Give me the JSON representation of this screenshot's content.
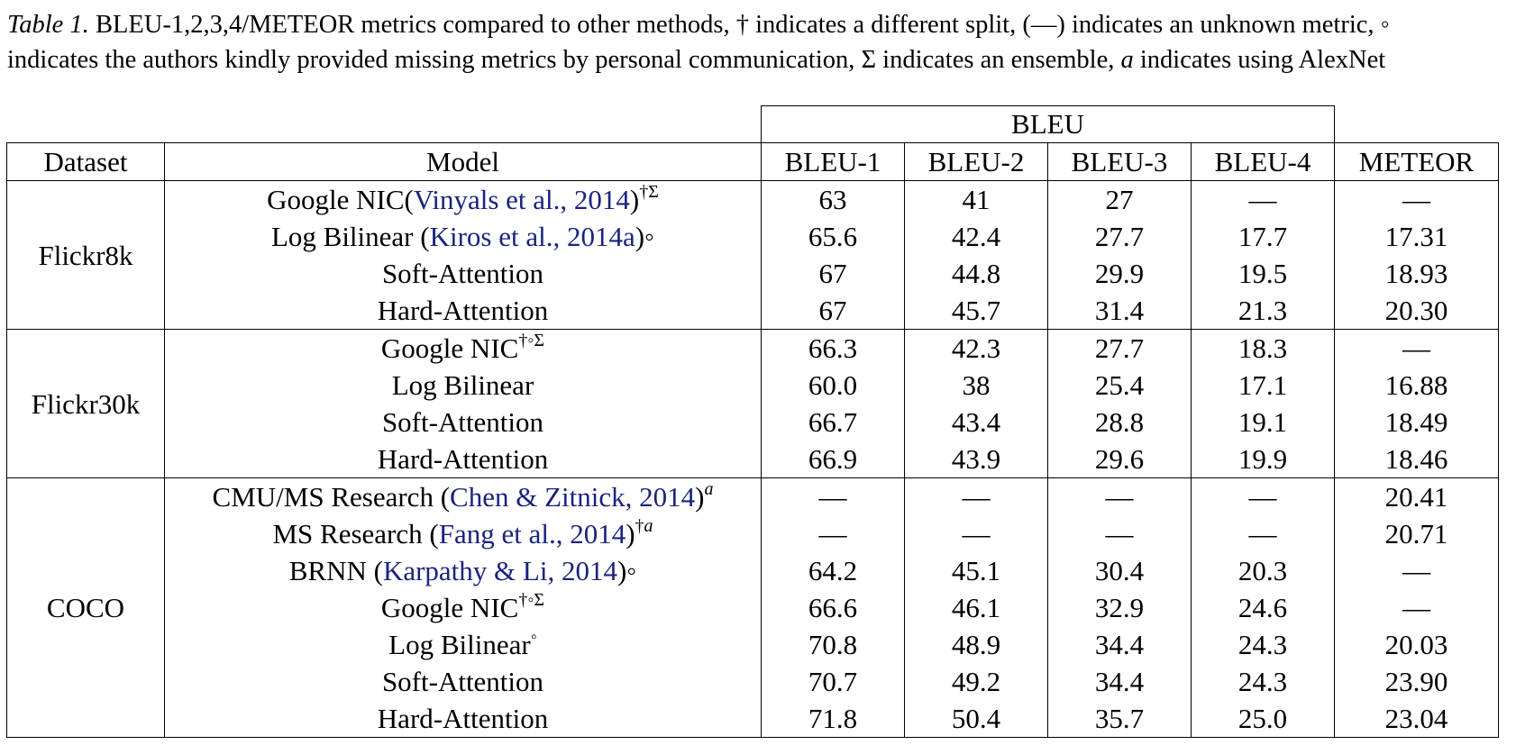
{
  "caption": {
    "label": "Table 1.",
    "text_a": "BLEU-1,2,3,4/METEOR metrics compared to other methods, † indicates a different split, (—) indicates an unknown metric, ◦",
    "text_b": "indicates the authors kindly provided missing metrics by personal communication, Σ indicates an ensemble, ",
    "italic_a": "a",
    "text_c": " indicates using AlexNet"
  },
  "table": {
    "group_header": "BLEU",
    "headers": [
      "Dataset",
      "Model",
      "BLEU-1",
      "BLEU-2",
      "BLEU-3",
      "BLEU-4",
      "METEOR"
    ],
    "groups": [
      {
        "dataset": "Flickr8k",
        "rows": [
          {
            "model": "Google NIC(",
            "cite": "Vinyals et al., 2014",
            "after": ")",
            "marks": "†Σ",
            "values": [
              "63",
              "41",
              "27",
              "—",
              "—"
            ],
            "bold": [
              false,
              false,
              false,
              false,
              false
            ]
          },
          {
            "model": "Log Bilinear (",
            "cite": "Kiros et al., 2014a",
            "after": ")◦",
            "marks": "",
            "values": [
              "65.6",
              "42.4",
              "27.7",
              "17.7",
              "17.31"
            ],
            "bold": [
              false,
              false,
              false,
              false,
              false
            ]
          },
          {
            "model": "Soft-Attention",
            "cite": "",
            "after": "",
            "marks": "",
            "values": [
              "67",
              "44.8",
              "29.9",
              "19.5",
              "18.93"
            ],
            "bold": [
              true,
              false,
              false,
              false,
              false
            ]
          },
          {
            "model": "Hard-Attention",
            "cite": "",
            "after": "",
            "marks": "",
            "values": [
              "67",
              "45.7",
              "31.4",
              "21.3",
              "20.30"
            ],
            "bold": [
              true,
              true,
              true,
              true,
              true
            ]
          }
        ]
      },
      {
        "dataset": "Flickr30k",
        "rows": [
          {
            "model": "Google NIC",
            "cite": "",
            "after": "",
            "marks": "†◦Σ",
            "values": [
              "66.3",
              "42.3",
              "27.7",
              "18.3",
              "—"
            ],
            "bold": [
              false,
              false,
              false,
              false,
              false
            ]
          },
          {
            "model": "Log Bilinear",
            "cite": "",
            "after": "",
            "marks": "",
            "values": [
              "60.0",
              "38",
              "25.4",
              "17.1",
              "16.88"
            ],
            "bold": [
              false,
              false,
              false,
              false,
              false
            ]
          },
          {
            "model": "Soft-Attention",
            "cite": "",
            "after": "",
            "marks": "",
            "values": [
              "66.7",
              "43.4",
              "28.8",
              "19.1",
              "18.49"
            ],
            "bold": [
              false,
              false,
              false,
              false,
              true
            ]
          },
          {
            "model": "Hard-Attention",
            "cite": "",
            "after": "",
            "marks": "",
            "values": [
              "66.9",
              "43.9",
              "29.6",
              "19.9",
              "18.46"
            ],
            "bold": [
              true,
              true,
              true,
              true,
              false
            ]
          }
        ]
      },
      {
        "dataset": "COCO",
        "rows": [
          {
            "model": "CMU/MS Research (",
            "cite": "Chen & Zitnick, 2014",
            "after": ")",
            "marks": "a",
            "values": [
              "—",
              "—",
              "—",
              "—",
              "20.41"
            ],
            "bold": [
              false,
              false,
              false,
              false,
              false
            ]
          },
          {
            "model": "MS Research (",
            "cite": "Fang et al., 2014",
            "after": ")",
            "marks": "†a",
            "values": [
              "—",
              "—",
              "—",
              "—",
              "20.71"
            ],
            "bold": [
              false,
              false,
              false,
              false,
              false
            ]
          },
          {
            "model": "BRNN (",
            "cite": "Karpathy & Li, 2014",
            "after": ")◦",
            "marks": "",
            "values": [
              "64.2",
              "45.1",
              "30.4",
              "20.3",
              "—"
            ],
            "bold": [
              false,
              false,
              false,
              false,
              false
            ]
          },
          {
            "model": "Google NIC",
            "cite": "",
            "after": "",
            "marks": "†◦Σ",
            "values": [
              "66.6",
              "46.1",
              "32.9",
              "24.6",
              "—"
            ],
            "bold": [
              false,
              false,
              false,
              false,
              false
            ]
          },
          {
            "model": "Log Bilinear",
            "cite": "",
            "after": "",
            "marks": "◦",
            "values": [
              "70.8",
              "48.9",
              "34.4",
              "24.3",
              "20.03"
            ],
            "bold": [
              false,
              false,
              false,
              false,
              false
            ]
          },
          {
            "model": "Soft-Attention",
            "cite": "",
            "after": "",
            "marks": "",
            "values": [
              "70.7",
              "49.2",
              "34.4",
              "24.3",
              "23.90"
            ],
            "bold": [
              false,
              false,
              false,
              false,
              true
            ]
          },
          {
            "model": "Hard-Attention",
            "cite": "",
            "after": "",
            "marks": "",
            "values": [
              "71.8",
              "50.4",
              "35.7",
              "25.0",
              "23.04"
            ],
            "bold": [
              true,
              true,
              true,
              true,
              false
            ]
          }
        ]
      }
    ]
  }
}
